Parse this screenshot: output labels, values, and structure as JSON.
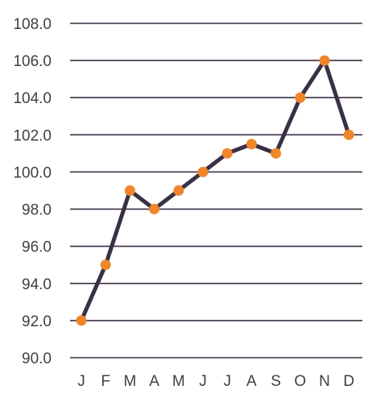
{
  "chart_data": {
    "type": "line",
    "categories": [
      "J",
      "F",
      "M",
      "A",
      "M",
      "J",
      "J",
      "A",
      "S",
      "O",
      "N",
      "D"
    ],
    "series": [
      {
        "values": [
          92.0,
          95.0,
          99.0,
          98.0,
          99.0,
          100.0,
          101.0,
          101.5,
          101.0,
          104.0,
          106.0,
          102.0
        ]
      }
    ],
    "y_ticks": [
      "108.0",
      "106.0",
      "104.0",
      "102.0",
      "100.0",
      "98.0",
      "96.0",
      "94.0",
      "92.0",
      "90.0"
    ],
    "ylim": [
      90,
      108
    ],
    "grid": "horizontal",
    "legend": "none",
    "colors": {
      "line": "#3b2f45",
      "marker": "#f0862a",
      "grid": "#3b2f45",
      "text": "#404040"
    }
  }
}
